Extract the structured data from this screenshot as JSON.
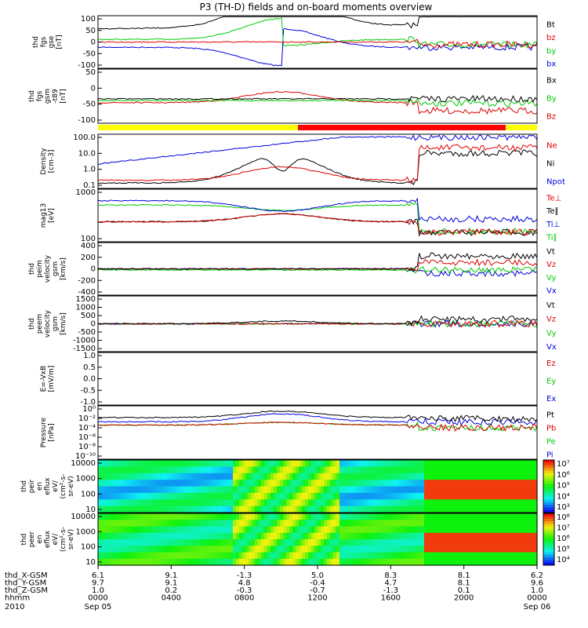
{
  "title": "P3 (TH-D) fields and on-board moments overview",
  "chart_data": {
    "type": "line",
    "panels": [
      {
        "id": "fgs_gse",
        "ylabel": [
          "thd",
          "fgs",
          "gse",
          "[nT]"
        ],
        "ylim": [
          -100,
          100
        ],
        "yticks": [
          "100",
          "50",
          "0",
          "-50",
          "-100"
        ],
        "legend": [
          {
            "name": "Bt",
            "color": "#000000"
          },
          {
            "name": "bz",
            "color": "#dd0000"
          },
          {
            "name": "by",
            "color": "#00cc00"
          },
          {
            "name": "bx",
            "color": "#0000dd"
          }
        ]
      },
      {
        "id": "fgs_gsm_t89",
        "ylabel": [
          "thd",
          "fgs",
          "gsm",
          "-t89",
          "[nT]"
        ],
        "ylim": [
          -120,
          80
        ],
        "yticks": [
          "50",
          "0",
          "-50",
          "-100"
        ],
        "legend": [
          {
            "name": "Bx",
            "color": "#000000"
          },
          {
            "name": "By",
            "color": "#00cc00"
          },
          {
            "name": "Bz",
            "color": "#dd0000"
          }
        ]
      },
      {
        "id": "density",
        "ylabel": [
          "Density",
          "[cm-3]"
        ],
        "log": true,
        "yticks": [
          "100.0",
          "10.0",
          "1.0",
          "0.1"
        ],
        "legend": [
          {
            "name": "Ne",
            "color": "#dd0000"
          },
          {
            "name": "Ni",
            "color": "#000000"
          },
          {
            "name": "Npot",
            "color": "#0000dd"
          }
        ]
      },
      {
        "id": "temperature",
        "ylabel": [
          "mag13",
          "[eV]"
        ],
        "log": true,
        "yticks": [
          "1000",
          "100"
        ],
        "legend": [
          {
            "name": "Te⊥",
            "color": "#dd0000"
          },
          {
            "name": "Te∥",
            "color": "#000000"
          },
          {
            "name": "Ti⊥",
            "color": "#0000dd"
          },
          {
            "name": "Ti∥",
            "color": "#00cc00"
          }
        ]
      },
      {
        "id": "peim_velocity",
        "ylabel": [
          "thd",
          "peim",
          "velocity",
          "gsm",
          "[km/s]"
        ],
        "ylim": [
          -400,
          400
        ],
        "yticks": [
          "400",
          "200",
          "0",
          "-200",
          "-400"
        ],
        "legend": [
          {
            "name": "Vt",
            "color": "#000000"
          },
          {
            "name": "Vz",
            "color": "#dd0000"
          },
          {
            "name": "Vy",
            "color": "#00cc00"
          },
          {
            "name": "Vx",
            "color": "#0000dd"
          }
        ]
      },
      {
        "id": "peem_velocity",
        "ylabel": [
          "thd",
          "peem",
          "velocity",
          "gsm",
          "[km/s]"
        ],
        "ylim": [
          -1500,
          1500
        ],
        "yticks": [
          "1500",
          "1000",
          "500",
          "0",
          "-500",
          "-1000",
          "-1500"
        ],
        "legend": [
          {
            "name": "Vt",
            "color": "#000000"
          },
          {
            "name": "Vz",
            "color": "#dd0000"
          },
          {
            "name": "Vy",
            "color": "#00cc00"
          },
          {
            "name": "Vx",
            "color": "#0000dd"
          }
        ]
      },
      {
        "id": "efield",
        "ylabel": [
          "E=-VxB",
          "[mV/m]"
        ],
        "ylim": [
          -1,
          1
        ],
        "yticks": [
          "1.0",
          "0.5",
          "0.0",
          "-0.5",
          "-1.0"
        ],
        "legend": [
          {
            "name": "Ez",
            "color": "#dd0000"
          },
          {
            "name": "Ey",
            "color": "#00cc00"
          },
          {
            "name": "Ex",
            "color": "#0000dd"
          }
        ]
      },
      {
        "id": "pressure",
        "ylabel": [
          "Pressure",
          "[nPa]"
        ],
        "log": true,
        "yticks": [
          "10⁰",
          "10⁻²",
          "10⁻⁴",
          "10⁻⁶",
          "10⁻⁸",
          "10⁻¹⁰"
        ],
        "legend": [
          {
            "name": "Pt",
            "color": "#000000"
          },
          {
            "name": "Pb",
            "color": "#dd0000"
          },
          {
            "name": "Pe",
            "color": "#00cc00"
          },
          {
            "name": "Pi",
            "color": "#0000dd"
          }
        ]
      },
      {
        "id": "peir_spec",
        "type": "heatmap",
        "ylabel": [
          "thd",
          "peir",
          "en",
          "eflux",
          "eV/",
          "(cm²-s-",
          "sr-eV)"
        ],
        "yticks": [
          "10000",
          "1000",
          "100",
          "10"
        ],
        "colorbar_ticks": [
          "10⁷",
          "10⁶",
          "10⁵",
          "10⁴",
          "10³"
        ]
      },
      {
        "id": "peer_spec",
        "type": "heatmap",
        "ylabel": [
          "thd",
          "peer",
          "en",
          "eflux",
          "eV/",
          "(cm²-s-",
          "sr-eV)"
        ],
        "yticks": [
          "10000",
          "1000",
          "100",
          "10"
        ],
        "colorbar_ticks": [
          "10⁸",
          "10⁷",
          "10⁶",
          "10⁵",
          "10⁴"
        ]
      }
    ],
    "x_axis": {
      "ticks": [
        "0000",
        "0400",
        "0800",
        "1200",
        "1600",
        "2000",
        "0000"
      ],
      "rows": [
        {
          "label": "thd_X-GSM",
          "values": [
            "6.1",
            "9.1",
            "-1.3",
            "5.0",
            "8.3",
            "8.1",
            "6.2"
          ]
        },
        {
          "label": "thd_Y-GSM",
          "values": [
            "9.7",
            "9.1",
            "4.8",
            "-0.4",
            "4.7",
            "8.1",
            "9.6"
          ]
        },
        {
          "label": "thd_Z-GSM",
          "values": [
            "1.0",
            "0.2",
            "-0.3",
            "-0.7",
            "-1.3",
            "0.1",
            "1.0"
          ]
        },
        {
          "label": "hhmm",
          "values": [
            "0000",
            "0400",
            "0800",
            "1200",
            "1600",
            "2000",
            "0000"
          ]
        }
      ],
      "year": "2010",
      "date_start": "Sep 05",
      "date_end": "Sep 06"
    }
  }
}
